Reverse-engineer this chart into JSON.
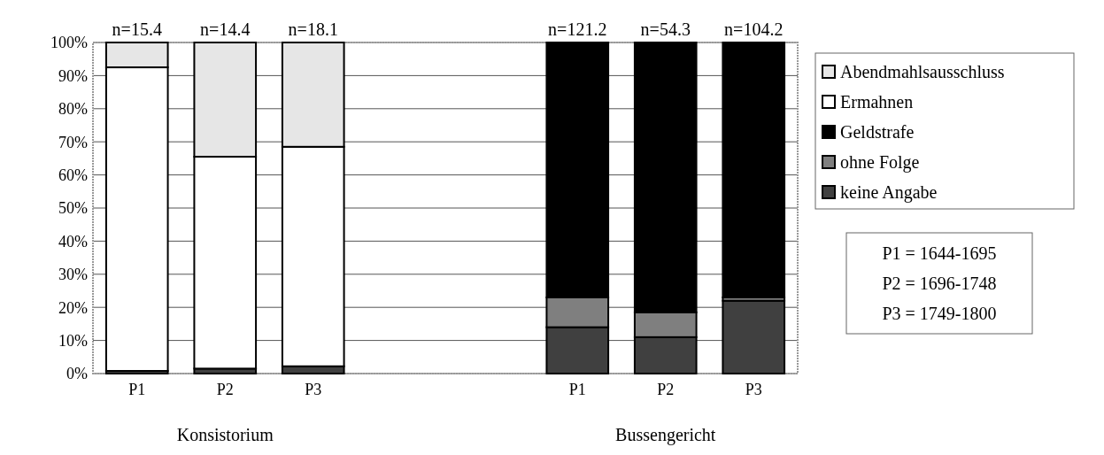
{
  "chart_data": {
    "type": "bar",
    "stacked": true,
    "categories": [
      "P1",
      "P2",
      "P3",
      null,
      null,
      "P1",
      "P2",
      "P3"
    ],
    "series": [
      {
        "name": "keine Angabe",
        "color": "#404040",
        "values": [
          0.8,
          1.5,
          2.2,
          null,
          null,
          14,
          11,
          22
        ]
      },
      {
        "name": "ohne Folge",
        "color": "#7f7f7f",
        "values": [
          0,
          0,
          0,
          null,
          null,
          9,
          7.5,
          1
        ]
      },
      {
        "name": "Geldstrafe",
        "color": "#000000",
        "values": [
          0,
          0,
          0,
          null,
          null,
          77,
          81.5,
          77
        ]
      },
      {
        "name": "Ermahnen",
        "color": "#ffffff",
        "values": [
          91.7,
          64,
          66.3,
          null,
          null,
          0,
          0,
          0
        ]
      },
      {
        "name": "Abendmahlsausschluss",
        "color": "#e6e6e6",
        "values": [
          7.5,
          34.5,
          31.5,
          null,
          null,
          0,
          0,
          0
        ]
      }
    ],
    "ylim": [
      0,
      100
    ],
    "yticks": [
      {
        "value": 0,
        "label": "0%"
      },
      {
        "value": 10,
        "label": "10%"
      },
      {
        "value": 20,
        "label": "20%"
      },
      {
        "value": 30,
        "label": "30%"
      },
      {
        "value": 40,
        "label": "40%"
      },
      {
        "value": 50,
        "label": "50%"
      },
      {
        "value": 60,
        "label": "60%"
      },
      {
        "value": 70,
        "label": "70%"
      },
      {
        "value": 80,
        "label": "80%"
      },
      {
        "value": 90,
        "label": "90%"
      },
      {
        "value": 100,
        "label": "100%"
      }
    ],
    "grid": "y",
    "legend": "right",
    "annotations": [
      "n=15.4",
      "n=14.4",
      "n=18.1",
      "n=121.2",
      "n=54.3",
      "n=104.2",
      "Konsistorium",
      "Bussengericht",
      "P1 = 1644-1695",
      "P2 = 1696-1748",
      "P3 = 1749-1800"
    ]
  }
}
